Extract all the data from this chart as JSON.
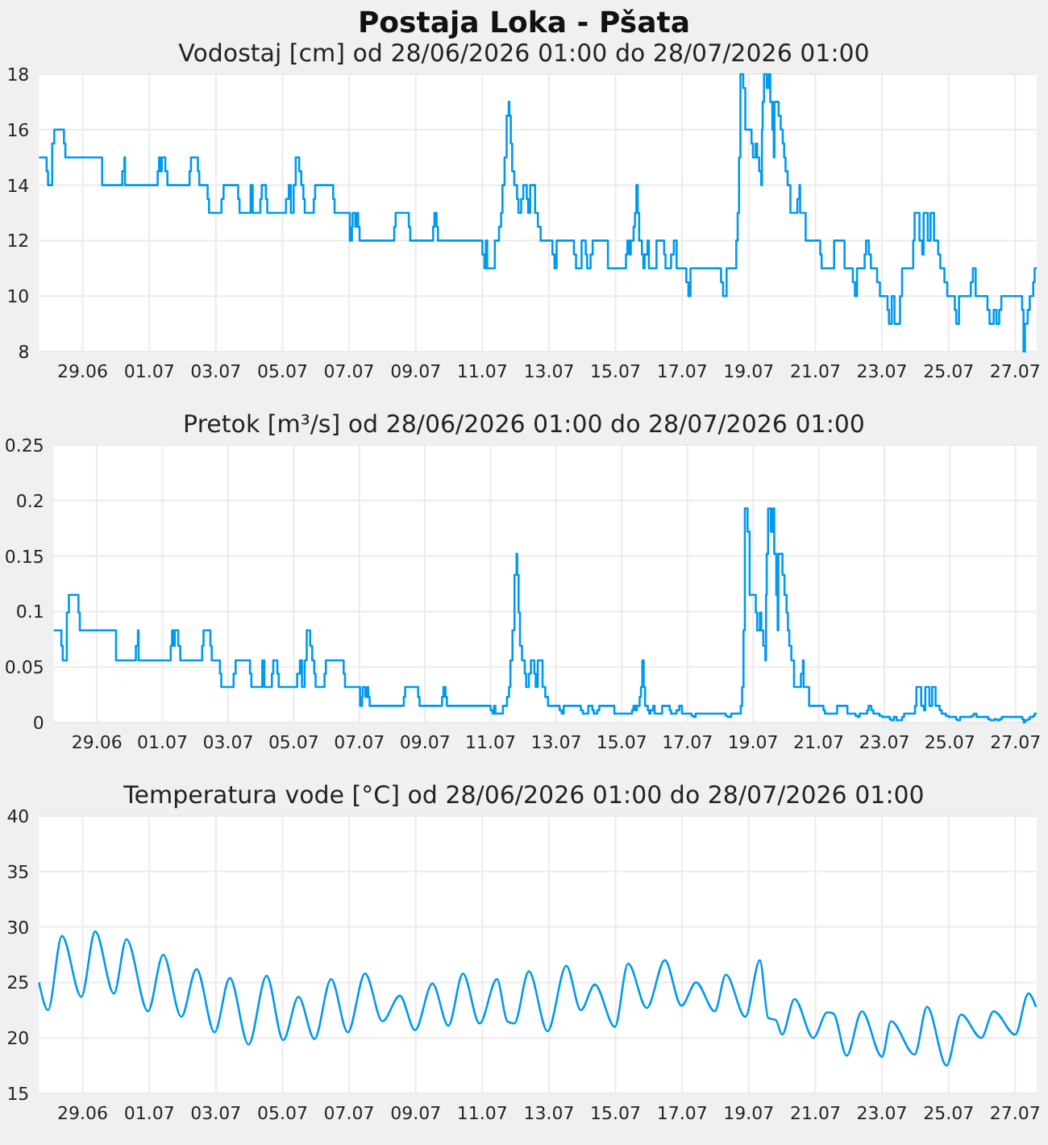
{
  "chart_data": [
    {
      "type": "step",
      "title": "Postaja Loka - Pšata",
      "subtitle": "Vodostaj [cm] od 28/06/2026 01:00 do 28/07/2026 01:00",
      "color": "#0099ee",
      "grid": true,
      "xlim": [
        "2026-06-27T16:30",
        "2026-07-27T15:30"
      ],
      "ylim": [
        8,
        18
      ],
      "yticks": [
        8,
        10,
        12,
        14,
        16,
        18
      ],
      "xticks": [
        {
          "value": "2026-06-29",
          "label": "29.06"
        },
        {
          "value": "2026-07-01",
          "label": "01.07"
        },
        {
          "value": "2026-07-03",
          "label": "03.07"
        },
        {
          "value": "2026-07-05",
          "label": "05.07"
        },
        {
          "value": "2026-07-07",
          "label": "07.07"
        },
        {
          "value": "2026-07-09",
          "label": "09.07"
        },
        {
          "value": "2026-07-11",
          "label": "11.07"
        },
        {
          "value": "2026-07-13",
          "label": "13.07"
        },
        {
          "value": "2026-07-15",
          "label": "15.07"
        },
        {
          "value": "2026-07-17",
          "label": "17.07"
        },
        {
          "value": "2026-07-19",
          "label": "19.07"
        },
        {
          "value": "2026-07-21",
          "label": "21.07"
        },
        {
          "value": "2026-07-23",
          "label": "23.07"
        },
        {
          "value": "2026-07-25",
          "label": "25.07"
        },
        {
          "value": "2026-07-27",
          "label": "27.07"
        }
      ],
      "x": [
        "2026-06-27T16:30",
        "2026-06-27T22:00",
        "2026-06-27T23:00",
        "2026-06-28T02:00",
        "2026-06-28T03:30",
        "2026-06-28T10:30",
        "2026-06-28T11:30",
        "2026-06-29T14:00",
        "2026-06-30T04:30",
        "2026-06-30T06:00",
        "2026-06-30T06:30",
        "2026-07-01T06:00",
        "2026-07-01T07:00",
        "2026-07-01T08:00",
        "2026-07-01T09:00",
        "2026-07-01T11:30",
        "2026-07-01T13:00",
        "2026-07-02T05:00",
        "2026-07-02T06:00",
        "2026-07-02T11:00",
        "2026-07-02T12:00",
        "2026-07-02T18:00",
        "2026-07-02T19:00",
        "2026-07-03T04:00",
        "2026-07-03T05:30",
        "2026-07-03T16:00",
        "2026-07-03T17:00",
        "2026-07-04T01:00",
        "2026-07-04T02:30",
        "2026-07-04T08:00",
        "2026-07-04T09:00",
        "2026-07-04T12:00",
        "2026-07-04T13:00",
        "2026-07-05T02:30",
        "2026-07-05T04:30",
        "2026-07-05T06:00",
        "2026-07-05T08:00",
        "2026-07-05T09:30",
        "2026-07-05T12:00",
        "2026-07-05T13:30",
        "2026-07-05T15:00",
        "2026-07-05T16:00",
        "2026-07-05T22:30",
        "2026-07-05T23:30",
        "2026-07-06T12:30",
        "2026-07-06T13:30",
        "2026-07-07T00:30",
        "2026-07-07T02:00",
        "2026-07-07T02:30",
        "2026-07-07T04:30",
        "2026-07-07T06:00",
        "2026-07-07T06:30",
        "2026-07-07T07:30",
        "2026-07-08T08:30",
        "2026-07-08T09:30",
        "2026-07-08T19:00",
        "2026-07-08T20:00",
        "2026-07-09T12:30",
        "2026-07-09T13:30",
        "2026-07-09T15:00",
        "2026-07-09T16:00",
        "2026-07-11T00:00",
        "2026-07-11T01:30",
        "2026-07-11T02:30",
        "2026-07-11T03:30",
        "2026-07-11T09:00",
        "2026-07-11T12:00",
        "2026-07-11T13:30",
        "2026-07-11T14:30",
        "2026-07-11T16:00",
        "2026-07-11T17:30",
        "2026-07-11T19:00",
        "2026-07-11T19:30",
        "2026-07-11T20:30",
        "2026-07-11T21:30",
        "2026-07-11T23:00",
        "2026-07-12T01:00",
        "2026-07-12T02:00",
        "2026-07-12T04:00",
        "2026-07-12T05:30",
        "2026-07-12T08:00",
        "2026-07-12T09:00",
        "2026-07-12T10:30",
        "2026-07-12T14:00",
        "2026-07-12T16:00",
        "2026-07-12T18:00",
        "2026-07-13T02:30",
        "2026-07-13T04:00",
        "2026-07-13T05:30",
        "2026-07-13T18:00",
        "2026-07-13T19:30",
        "2026-07-13T23:30",
        "2026-07-14T02:30",
        "2026-07-14T03:30",
        "2026-07-14T06:00",
        "2026-07-14T07:30",
        "2026-07-14T18:30",
        "2026-07-15T07:30",
        "2026-07-15T08:30",
        "2026-07-15T10:00",
        "2026-07-15T11:00",
        "2026-07-15T13:00",
        "2026-07-15T14:00",
        "2026-07-15T15:00",
        "2026-07-15T16:00",
        "2026-07-15T17:00",
        "2026-07-15T19:00",
        "2026-07-15T20:00",
        "2026-07-15T21:00",
        "2026-07-15T23:00",
        "2026-07-16T00:00",
        "2026-07-16T05:30",
        "2026-07-16T11:00",
        "2026-07-16T12:00",
        "2026-07-16T16:00",
        "2026-07-16T18:00",
        "2026-07-16T20:00",
        "2026-07-17T03:00",
        "2026-07-17T04:30",
        "2026-07-17T06:00",
        "2026-07-18T04:00",
        "2026-07-18T05:30",
        "2026-07-18T08:00",
        "2026-07-18T15:00",
        "2026-07-18T16:00",
        "2026-07-18T17:00",
        "2026-07-18T18:00",
        "2026-07-18T20:00",
        "2026-07-18T21:30",
        "2026-07-19T02:00",
        "2026-07-19T03:00",
        "2026-07-19T05:00",
        "2026-07-19T06:00",
        "2026-07-19T07:30",
        "2026-07-19T09:00",
        "2026-07-19T09:30",
        "2026-07-19T10:00",
        "2026-07-19T11:00",
        "2026-07-19T13:00",
        "2026-07-19T14:30",
        "2026-07-19T15:30",
        "2026-07-19T17:00",
        "2026-07-19T18:00",
        "2026-07-19T18:30",
        "2026-07-19T21:30",
        "2026-07-19T23:00",
        "2026-07-20T00:30",
        "2026-07-20T01:30",
        "2026-07-20T02:30",
        "2026-07-20T04:00",
        "2026-07-20T06:00",
        "2026-07-20T11:00",
        "2026-07-20T12:30",
        "2026-07-20T13:00",
        "2026-07-20T17:00",
        "2026-07-21T03:30",
        "2026-07-21T04:30",
        "2026-07-21T13:30",
        "2026-07-21T21:00",
        "2026-07-22T03:00",
        "2026-07-22T04:30",
        "2026-07-22T06:00",
        "2026-07-22T11:30",
        "2026-07-22T12:30",
        "2026-07-22T14:30",
        "2026-07-22T16:00",
        "2026-07-22T20:30",
        "2026-07-22T22:30",
        "2026-07-23T04:00",
        "2026-07-23T05:00",
        "2026-07-23T07:00",
        "2026-07-23T09:00",
        "2026-07-23T13:00",
        "2026-07-23T14:30",
        "2026-07-23T22:30",
        "2026-07-23T23:30",
        "2026-07-24T03:00",
        "2026-07-24T05:00",
        "2026-07-24T06:00",
        "2026-07-24T09:00",
        "2026-07-24T11:00",
        "2026-07-24T13:30",
        "2026-07-24T16:30",
        "2026-07-24T18:00",
        "2026-07-24T21:00",
        "2026-07-24T23:00",
        "2026-07-25T04:30",
        "2026-07-25T05:30",
        "2026-07-25T07:30",
        "2026-07-25T16:00",
        "2026-07-25T17:30",
        "2026-07-25T19:30",
        "2026-07-26T04:00",
        "2026-07-26T05:30",
        "2026-07-26T08:30",
        "2026-07-26T10:30",
        "2026-07-26T12:30",
        "2026-07-26T14:00",
        "2026-07-27T05:00",
        "2026-07-27T06:00",
        "2026-07-27T07:00",
        "2026-07-27T09:00",
        "2026-07-27T10:30",
        "2026-07-27T13:00",
        "2026-07-27T14:00",
        "2026-07-27T15:30"
      ],
      "values": [
        15,
        14.5,
        14,
        15.5,
        16,
        15.5,
        15,
        14,
        14.5,
        15,
        14,
        14.5,
        15,
        14.5,
        15,
        14.5,
        14,
        14.5,
        15,
        14.5,
        14,
        13.5,
        13,
        13.5,
        14,
        13.5,
        13,
        14,
        13,
        13.5,
        14,
        13.5,
        13,
        13.5,
        14,
        13,
        14,
        15,
        14.5,
        14,
        13.5,
        13,
        13.5,
        14,
        13.5,
        13,
        12,
        12.5,
        13,
        12.5,
        13,
        12.5,
        12,
        12.5,
        13,
        12.5,
        12,
        12.5,
        13,
        12.5,
        12,
        11.5,
        11,
        12,
        11,
        12,
        12.5,
        13,
        14,
        15,
        16.5,
        17,
        16.5,
        15.5,
        14.5,
        14,
        13.5,
        13,
        13.5,
        14,
        13.5,
        13,
        14,
        13,
        12.5,
        12,
        11.5,
        11,
        12,
        11.5,
        11,
        12,
        11.5,
        11,
        11.5,
        12,
        11,
        11.5,
        12,
        11.5,
        12,
        12.5,
        13,
        14,
        13,
        12,
        11.5,
        11,
        11.5,
        12,
        11,
        12,
        11.5,
        11,
        11.5,
        12,
        11,
        10.5,
        10,
        11,
        10.5,
        10,
        11,
        12,
        13,
        15,
        18,
        17.5,
        16,
        15.5,
        15,
        15.5,
        15,
        14.5,
        14,
        16,
        17,
        18,
        17.5,
        18,
        17,
        16,
        15,
        17,
        16.5,
        16,
        15.5,
        15,
        14.5,
        14,
        13,
        13.5,
        14,
        13,
        12,
        11.5,
        11,
        12,
        11,
        10.5,
        10,
        11,
        11.5,
        12,
        11.5,
        11,
        10.5,
        10,
        9.5,
        9,
        10,
        9,
        10,
        11,
        12,
        13,
        12,
        11.5,
        13,
        12,
        13,
        12,
        11.5,
        11,
        10.5,
        10,
        9.5,
        9,
        10,
        10.5,
        11,
        10,
        9.5,
        9,
        9.5,
        9,
        9.5,
        10,
        9.5,
        8,
        9,
        9.5,
        10,
        10.5,
        11,
        11
      ]
    },
    {
      "type": "step",
      "title": "Pretok [m³/s] od 28/06/2026 01:00 do 28/07/2026 01:00",
      "color": "#0099ee",
      "grid": true,
      "xlim": [
        "2026-06-27T16:30",
        "2026-07-27T15:30"
      ],
      "ylim": [
        0,
        0.25
      ],
      "yticks": [
        0,
        0.05,
        0.1,
        0.15,
        0.2,
        0.25
      ],
      "xticks": [
        {
          "value": "2026-06-29",
          "label": "29.06"
        },
        {
          "value": "2026-07-01",
          "label": "01.07"
        },
        {
          "value": "2026-07-03",
          "label": "03.07"
        },
        {
          "value": "2026-07-05",
          "label": "05.07"
        },
        {
          "value": "2026-07-07",
          "label": "07.07"
        },
        {
          "value": "2026-07-09",
          "label": "09.07"
        },
        {
          "value": "2026-07-11",
          "label": "11.07"
        },
        {
          "value": "2026-07-13",
          "label": "13.07"
        },
        {
          "value": "2026-07-15",
          "label": "15.07"
        },
        {
          "value": "2026-07-17",
          "label": "17.07"
        },
        {
          "value": "2026-07-19",
          "label": "19.07"
        },
        {
          "value": "2026-07-21",
          "label": "21.07"
        },
        {
          "value": "2026-07-23",
          "label": "23.07"
        },
        {
          "value": "2026-07-25",
          "label": "25.07"
        },
        {
          "value": "2026-07-27",
          "label": "27.07"
        }
      ],
      "x": [
        "2026-06-27T16:30",
        "2026-06-27T22:00",
        "2026-06-27T23:00",
        "2026-06-28T02:00",
        "2026-06-28T03:30",
        "2026-06-28T10:30",
        "2026-06-28T11:30",
        "2026-06-29T14:00",
        "2026-06-30T04:30",
        "2026-06-30T06:00",
        "2026-06-30T06:30",
        "2026-07-01T06:00",
        "2026-07-01T07:00",
        "2026-07-01T08:00",
        "2026-07-01T09:00",
        "2026-07-01T11:30",
        "2026-07-01T13:00",
        "2026-07-02T05:00",
        "2026-07-02T06:00",
        "2026-07-02T11:00",
        "2026-07-02T12:00",
        "2026-07-02T18:00",
        "2026-07-02T19:00",
        "2026-07-03T04:00",
        "2026-07-03T05:30",
        "2026-07-03T16:00",
        "2026-07-03T17:00",
        "2026-07-04T01:00",
        "2026-07-04T02:30",
        "2026-07-04T08:00",
        "2026-07-04T09:00",
        "2026-07-04T12:00",
        "2026-07-04T13:00",
        "2026-07-05T02:30",
        "2026-07-05T04:30",
        "2026-07-05T06:00",
        "2026-07-05T08:00",
        "2026-07-05T09:30",
        "2026-07-05T12:00",
        "2026-07-05T13:30",
        "2026-07-05T15:00",
        "2026-07-05T16:00",
        "2026-07-05T22:30",
        "2026-07-05T23:30",
        "2026-07-06T12:30",
        "2026-07-06T13:30",
        "2026-07-07T00:30",
        "2026-07-07T02:00",
        "2026-07-07T02:30",
        "2026-07-07T04:30",
        "2026-07-07T06:00",
        "2026-07-07T06:30",
        "2026-07-07T07:30",
        "2026-07-08T08:30",
        "2026-07-08T09:30",
        "2026-07-08T19:00",
        "2026-07-08T20:00",
        "2026-07-09T12:30",
        "2026-07-09T13:30",
        "2026-07-09T15:00",
        "2026-07-09T16:00",
        "2026-07-11T00:00",
        "2026-07-11T01:30",
        "2026-07-11T02:30",
        "2026-07-11T03:30",
        "2026-07-11T09:00",
        "2026-07-11T12:00",
        "2026-07-11T13:30",
        "2026-07-11T14:30",
        "2026-07-11T16:00",
        "2026-07-11T17:30",
        "2026-07-11T19:00",
        "2026-07-11T19:30",
        "2026-07-11T20:30",
        "2026-07-11T21:30",
        "2026-07-11T23:00",
        "2026-07-12T01:00",
        "2026-07-12T02:00",
        "2026-07-12T04:00",
        "2026-07-12T05:30",
        "2026-07-12T08:00",
        "2026-07-12T09:00",
        "2026-07-12T10:30",
        "2026-07-12T14:00",
        "2026-07-12T16:00",
        "2026-07-12T18:00",
        "2026-07-13T02:30",
        "2026-07-13T04:00",
        "2026-07-13T05:30",
        "2026-07-13T18:00",
        "2026-07-13T19:30",
        "2026-07-13T23:30",
        "2026-07-14T02:30",
        "2026-07-14T03:30",
        "2026-07-14T06:00",
        "2026-07-14T07:30",
        "2026-07-14T18:30",
        "2026-07-15T07:30",
        "2026-07-15T08:30",
        "2026-07-15T10:00",
        "2026-07-15T11:00",
        "2026-07-15T13:00",
        "2026-07-15T14:00",
        "2026-07-15T15:00",
        "2026-07-15T16:00",
        "2026-07-15T17:00",
        "2026-07-15T19:00",
        "2026-07-15T20:00",
        "2026-07-15T21:00",
        "2026-07-15T23:00",
        "2026-07-16T00:00",
        "2026-07-16T05:30",
        "2026-07-16T11:00",
        "2026-07-16T12:00",
        "2026-07-16T16:00",
        "2026-07-16T18:00",
        "2026-07-16T20:00",
        "2026-07-17T03:00",
        "2026-07-17T04:30",
        "2026-07-17T06:00",
        "2026-07-18T04:00",
        "2026-07-18T05:30",
        "2026-07-18T08:00",
        "2026-07-18T15:00",
        "2026-07-18T16:00",
        "2026-07-18T17:00",
        "2026-07-18T18:00",
        "2026-07-18T20:00",
        "2026-07-18T21:30",
        "2026-07-19T02:00",
        "2026-07-19T03:00",
        "2026-07-19T05:00",
        "2026-07-19T06:00",
        "2026-07-19T07:30",
        "2026-07-19T09:00",
        "2026-07-19T09:30",
        "2026-07-19T10:00",
        "2026-07-19T11:00",
        "2026-07-19T13:00",
        "2026-07-19T14:30",
        "2026-07-19T15:30",
        "2026-07-19T17:00",
        "2026-07-19T18:00",
        "2026-07-19T18:30",
        "2026-07-19T21:30",
        "2026-07-19T23:00",
        "2026-07-20T00:30",
        "2026-07-20T01:30",
        "2026-07-20T02:30",
        "2026-07-20T04:00",
        "2026-07-20T06:00",
        "2026-07-20T11:00",
        "2026-07-20T12:30",
        "2026-07-20T13:00",
        "2026-07-20T17:00",
        "2026-07-21T03:30",
        "2026-07-21T04:30",
        "2026-07-21T13:30",
        "2026-07-21T21:00",
        "2026-07-22T03:00",
        "2026-07-22T04:30",
        "2026-07-22T06:00",
        "2026-07-22T11:30",
        "2026-07-22T12:30",
        "2026-07-22T14:30",
        "2026-07-22T16:00",
        "2026-07-22T20:30",
        "2026-07-22T22:30",
        "2026-07-23T04:00",
        "2026-07-23T05:00",
        "2026-07-23T07:00",
        "2026-07-23T09:00",
        "2026-07-23T13:00",
        "2026-07-23T14:30",
        "2026-07-23T22:30",
        "2026-07-23T23:30",
        "2026-07-24T03:00",
        "2026-07-24T05:00",
        "2026-07-24T06:00",
        "2026-07-24T09:00",
        "2026-07-24T11:00",
        "2026-07-24T13:30",
        "2026-07-24T16:30",
        "2026-07-24T18:00",
        "2026-07-24T21:00",
        "2026-07-24T23:00",
        "2026-07-25T04:30",
        "2026-07-25T05:30",
        "2026-07-25T07:30",
        "2026-07-25T16:00",
        "2026-07-25T17:30",
        "2026-07-25T19:30",
        "2026-07-26T04:00",
        "2026-07-26T05:30",
        "2026-07-26T08:30",
        "2026-07-26T10:30",
        "2026-07-26T12:30",
        "2026-07-26T14:00",
        "2026-07-27T05:00",
        "2026-07-27T06:00",
        "2026-07-27T07:00",
        "2026-07-27T09:00",
        "2026-07-27T10:30",
        "2026-07-27T13:00",
        "2026-07-27T14:00",
        "2026-07-27T15:30"
      ],
      "values": [
        0.083,
        0.069,
        0.056,
        0.099,
        0.115,
        0.099,
        0.083,
        0.056,
        0.069,
        0.083,
        0.056,
        0.069,
        0.083,
        0.069,
        0.083,
        0.069,
        0.056,
        0.069,
        0.083,
        0.069,
        0.056,
        0.044,
        0.032,
        0.044,
        0.056,
        0.044,
        0.032,
        0.056,
        0.032,
        0.044,
        0.056,
        0.044,
        0.032,
        0.044,
        0.056,
        0.032,
        0.056,
        0.083,
        0.069,
        0.056,
        0.044,
        0.032,
        0.044,
        0.056,
        0.044,
        0.032,
        0.015,
        0.023,
        0.032,
        0.023,
        0.032,
        0.023,
        0.015,
        0.023,
        0.032,
        0.023,
        0.015,
        0.023,
        0.032,
        0.023,
        0.015,
        0.011,
        0.008,
        0.015,
        0.008,
        0.015,
        0.023,
        0.032,
        0.056,
        0.083,
        0.133,
        0.152,
        0.133,
        0.099,
        0.069,
        0.056,
        0.044,
        0.032,
        0.044,
        0.056,
        0.044,
        0.032,
        0.056,
        0.032,
        0.023,
        0.015,
        0.011,
        0.008,
        0.015,
        0.011,
        0.008,
        0.015,
        0.011,
        0.008,
        0.011,
        0.015,
        0.008,
        0.011,
        0.015,
        0.011,
        0.015,
        0.023,
        0.032,
        0.056,
        0.032,
        0.015,
        0.011,
        0.008,
        0.011,
        0.015,
        0.008,
        0.015,
        0.011,
        0.008,
        0.011,
        0.015,
        0.008,
        0.006,
        0.005,
        0.008,
        0.006,
        0.005,
        0.008,
        0.015,
        0.032,
        0.083,
        0.193,
        0.172,
        0.115,
        0.099,
        0.083,
        0.099,
        0.083,
        0.069,
        0.056,
        0.115,
        0.152,
        0.193,
        0.172,
        0.193,
        0.152,
        0.115,
        0.083,
        0.152,
        0.133,
        0.115,
        0.099,
        0.083,
        0.069,
        0.056,
        0.032,
        0.044,
        0.056,
        0.032,
        0.015,
        0.011,
        0.008,
        0.015,
        0.008,
        0.006,
        0.005,
        0.008,
        0.011,
        0.015,
        0.011,
        0.008,
        0.006,
        0.005,
        0.003,
        0.002,
        0.005,
        0.002,
        0.005,
        0.008,
        0.015,
        0.032,
        0.015,
        0.011,
        0.032,
        0.015,
        0.032,
        0.015,
        0.011,
        0.008,
        0.006,
        0.005,
        0.003,
        0.002,
        0.005,
        0.006,
        0.008,
        0.005,
        0.003,
        0.002,
        0.003,
        0.002,
        0.003,
        0.005,
        0.003,
        0,
        0.002,
        0.003,
        0.005,
        0.006,
        0.008,
        0.008
      ]
    },
    {
      "type": "line",
      "title": "Temperatura vode [°C] od 28/06/2026 01:00 do 28/07/2026 01:00",
      "color": "#0099ee",
      "grid": true,
      "xlim": [
        "2026-06-27T16:30",
        "2026-07-27T15:30"
      ],
      "ylim": [
        15,
        40
      ],
      "yticks": [
        15,
        20,
        25,
        30,
        35,
        40
      ],
      "xticks": [
        {
          "value": "2026-06-29",
          "label": "29.06"
        },
        {
          "value": "2026-07-01",
          "label": "01.07"
        },
        {
          "value": "2026-07-03",
          "label": "03.07"
        },
        {
          "value": "2026-07-05",
          "label": "05.07"
        },
        {
          "value": "2026-07-07",
          "label": "07.07"
        },
        {
          "value": "2026-07-09",
          "label": "09.07"
        },
        {
          "value": "2026-07-11",
          "label": "11.07"
        },
        {
          "value": "2026-07-13",
          "label": "13.07"
        },
        {
          "value": "2026-07-15",
          "label": "15.07"
        },
        {
          "value": "2026-07-17",
          "label": "17.07"
        },
        {
          "value": "2026-07-19",
          "label": "19.07"
        },
        {
          "value": "2026-07-21",
          "label": "21.07"
        },
        {
          "value": "2026-07-23",
          "label": "23.07"
        },
        {
          "value": "2026-07-25",
          "label": "25.07"
        },
        {
          "value": "2026-07-27",
          "label": "27.07"
        }
      ],
      "x": [
        "2026-06-27T16:30",
        "2026-06-27T23:00",
        "2026-06-28T09:00",
        "2026-06-28T23:00",
        "2026-06-29T09:00",
        "2026-06-29T22:30",
        "2026-06-30T07:30",
        "2026-06-30T23:00",
        "2026-07-01T10:00",
        "2026-07-01T23:00",
        "2026-07-02T10:00",
        "2026-07-02T23:00",
        "2026-07-03T10:00",
        "2026-07-03T23:30",
        "2026-07-04T12:30",
        "2026-07-05T00:30",
        "2026-07-05T11:30",
        "2026-07-05T23:00",
        "2026-07-06T11:00",
        "2026-07-06T23:00",
        "2026-07-07T11:30",
        "2026-07-08T00:00",
        "2026-07-08T12:30",
        "2026-07-08T23:30",
        "2026-07-09T12:00",
        "2026-07-09T23:30",
        "2026-07-10T10:00",
        "2026-07-10T22:00",
        "2026-07-11T10:30",
        "2026-07-11T18:00",
        "2026-07-11T23:00",
        "2026-07-12T09:30",
        "2026-07-12T23:00",
        "2026-07-13T12:30",
        "2026-07-13T23:00",
        "2026-07-14T09:00",
        "2026-07-14T23:30",
        "2026-07-15T09:00",
        "2026-07-15T22:30",
        "2026-07-16T11:30",
        "2026-07-16T23:30",
        "2026-07-17T10:00",
        "2026-07-17T23:30",
        "2026-07-18T07:30",
        "2026-07-18T21:30",
        "2026-07-19T08:00",
        "2026-07-19T14:00",
        "2026-07-19T19:30",
        "2026-07-20T00:00",
        "2026-07-20T09:00",
        "2026-07-20T22:30",
        "2026-07-21T08:30",
        "2026-07-21T13:00",
        "2026-07-21T22:30",
        "2026-07-22T09:30",
        "2026-07-23T00:00",
        "2026-07-23T06:30",
        "2026-07-23T23:30",
        "2026-07-24T08:30",
        "2026-07-24T22:30",
        "2026-07-25T09:00",
        "2026-07-25T23:30",
        "2026-07-26T08:30",
        "2026-07-27T00:00",
        "2026-07-27T09:30",
        "2026-07-27T15:00"
      ],
      "values": [
        25,
        22.5,
        29.2,
        23.7,
        29.6,
        24,
        28.9,
        22.4,
        27.5,
        21.9,
        26.2,
        20.5,
        25.4,
        19.4,
        25.6,
        19.8,
        23.7,
        19.9,
        25.3,
        20.5,
        25.8,
        21.5,
        23.8,
        20.7,
        24.9,
        21.1,
        25.8,
        21.3,
        25.3,
        21.5,
        21.3,
        26,
        20.6,
        26.5,
        22.5,
        24.8,
        21,
        26.7,
        22.7,
        27,
        22.9,
        25,
        22.4,
        25.7,
        21.9,
        27,
        21.8,
        21.6,
        20.3,
        23.5,
        20,
        22.3,
        22.2,
        18.4,
        22.4,
        18.3,
        21.5,
        18.5,
        22.8,
        17.5,
        22.1,
        20,
        22.4,
        20.3,
        24,
        22.8
      ]
    }
  ]
}
